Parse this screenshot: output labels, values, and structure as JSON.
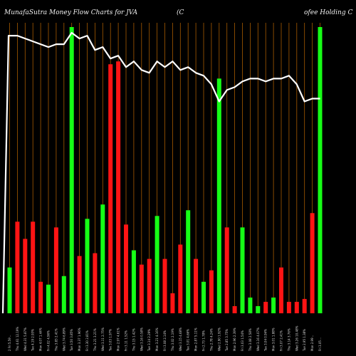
{
  "chart_data": {
    "type": "bar",
    "title_left": "MunafaSutra  Money Flow  Charts for JVA",
    "title_mid": "(C",
    "title_right": "ofee  Holding C",
    "ylim": [
      0,
      100
    ],
    "grid": "vertical",
    "colors": {
      "up": "#16ff16",
      "down": "#ff1414",
      "line": "#ffffff",
      "grid": "#a65a00",
      "background": "#000000"
    },
    "categories": [
      "2 Fri 5.59 ..",
      "Thu 4.61 12.19%",
      "Wed 4.31 5.87%",
      "Tue 4.19 2.93%",
      "Mon 4.07 1.44%",
      "Fri 4.02 4.96%",
      "Thu 3.83 2.41%",
      "Wed 3.74 6.89%",
      "Tue 3.50 3.85%",
      "Mon 3.37 1.96%",
      "Fri 3.30 2.81%",
      "Thu 3.21 3.21%",
      "Wed 3.11 2.75%",
      "Tue 3.03 1.97%",
      "Mon 2.97 4.61%",
      "Fri 3.11 1.52%",
      "Thu 3.15 1.42%",
      "Wed 3.16 0.58%",
      "Tue 3.14 2.29%",
      "Mon 3.21 4.16%",
      "Fri 3.08 2.14%",
      "Thu 3.02 2.19%",
      "Wed 3.15 4.68%",
      "Tue 3.01 4.66%",
      "Mon 2.87 5.11%",
      "Fri 2.73 1.78%",
      "Thu 2.78 4.24%",
      "Wed 2.90 1.92%",
      "Tue 2.85 3.75%",
      "Mon 2.96 2.39%",
      "Fri 3.03 1.54%",
      "Thu 3.08 2.58%",
      "Wed 3.16 4.07%",
      "Tue 3.04 0.94%",
      "Mon 3.01 1.88%",
      "Fri 3.07 2.41%",
      "Thu 3.14 3.76%",
      "Wed 3.26 10.48%",
      "Tue 2.95 1.38%",
      "Mon 2.99 ..",
      "Fri 3.05 .."
    ],
    "bar_colors": [
      "up",
      "down",
      "down",
      "down",
      "down",
      "up",
      "down",
      "up",
      "up",
      "down",
      "up",
      "down",
      "up",
      "down",
      "down",
      "down",
      "up",
      "down",
      "down",
      "up",
      "down",
      "down",
      "down",
      "up",
      "down",
      "up",
      "down",
      "up",
      "down",
      "down",
      "up",
      "up",
      "up",
      "down",
      "up",
      "down",
      "down",
      "down",
      "down",
      "down",
      "up"
    ],
    "bar_values": [
      16,
      32,
      26,
      32,
      11,
      10,
      30,
      13,
      100,
      20,
      33,
      21,
      38,
      87,
      88,
      31,
      22,
      17,
      19,
      34,
      19,
      7,
      24,
      36,
      19,
      11,
      15,
      82,
      30,
      2.5,
      30,
      5.5,
      2.5,
      4,
      5.5,
      16,
      4,
      4,
      5,
      35,
      100
    ],
    "line_values": [
      97,
      97,
      96,
      95,
      94,
      93,
      94,
      94,
      98,
      96,
      97,
      92,
      93,
      89,
      90,
      86,
      88,
      85,
      84,
      88,
      86,
      88,
      85,
      86,
      84,
      83,
      80,
      74,
      78,
      79,
      81,
      82,
      82,
      81,
      82,
      82,
      83,
      80,
      74,
      75,
      75
    ]
  }
}
